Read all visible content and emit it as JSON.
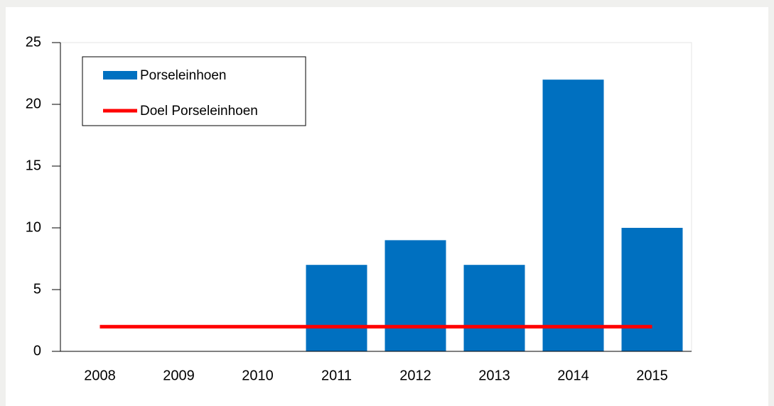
{
  "chart_data": {
    "type": "bar",
    "categories": [
      "2008",
      "2009",
      "2010",
      "2011",
      "2012",
      "2013",
      "2014",
      "2015"
    ],
    "series": [
      {
        "name": "Porseleinhoen",
        "color": "#0070c0",
        "type": "bar",
        "values": [
          0,
          0,
          0,
          7,
          9,
          7,
          22,
          10
        ]
      },
      {
        "name": "Doel Porseleinhoen",
        "color": "#ff0000",
        "type": "line",
        "values": [
          2,
          2,
          2,
          2,
          2,
          2,
          2,
          2
        ]
      }
    ],
    "ylim": [
      0,
      25
    ],
    "yticks": [
      0,
      5,
      10,
      15,
      20,
      25
    ],
    "legend": "top-left"
  }
}
